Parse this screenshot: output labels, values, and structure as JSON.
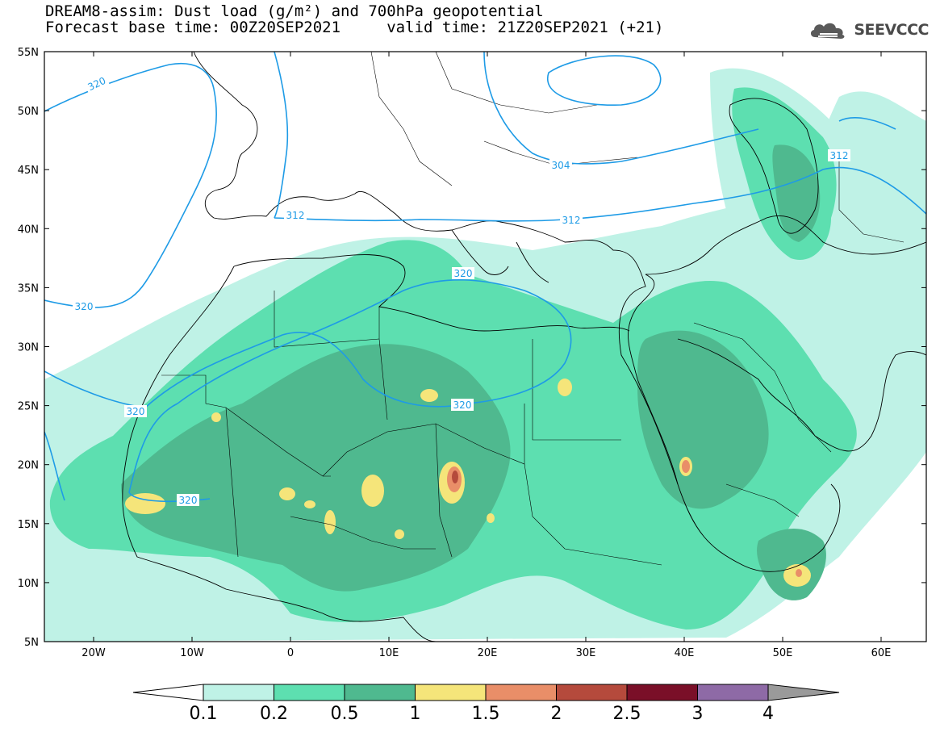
{
  "header": {
    "title_line1": "DREAM8-assim: Dust load (g/m²) and 700hPa geopotential",
    "title_line2": "Forecast base time: 00Z20SEP2021     valid time: 21Z20SEP2021 (+21)"
  },
  "logo": {
    "text": "SEEVCCC",
    "icon": "cloud-logo-icon"
  },
  "axes": {
    "lat_labels": [
      "55N",
      "50N",
      "45N",
      "40N",
      "35N",
      "30N",
      "25N",
      "20N",
      "15N",
      "10N",
      "5N"
    ],
    "lon_labels": [
      "20W",
      "10W",
      "0",
      "10E",
      "20E",
      "30E",
      "40E",
      "50E",
      "60E"
    ]
  },
  "contour_labels": [
    {
      "text": "320"
    },
    {
      "text": "320"
    },
    {
      "text": "320"
    },
    {
      "text": "320"
    },
    {
      "text": "320"
    },
    {
      "text": "320"
    },
    {
      "text": "312"
    },
    {
      "text": "312"
    },
    {
      "text": "312"
    },
    {
      "text": "304"
    }
  ],
  "colorbar": {
    "colors": [
      "#bff2e6",
      "#5ddfb0",
      "#4fb98f",
      "#f5e57a",
      "#e98e68",
      "#b54a3c",
      "#7a0f28",
      "#8e6aa6"
    ],
    "ticks": [
      "0.1",
      "0.2",
      "0.5",
      "1",
      "1.5",
      "2",
      "2.5",
      "3",
      "4"
    ]
  },
  "palette": {
    "contour": "#1e9be6",
    "land_low": "#bff2e6",
    "land_mid": "#5ddfb0",
    "land_high": "#4fb98f",
    "hotspot1": "#f5e57a",
    "hotspot2": "#e98e68",
    "hotspot3": "#b54a3c"
  }
}
